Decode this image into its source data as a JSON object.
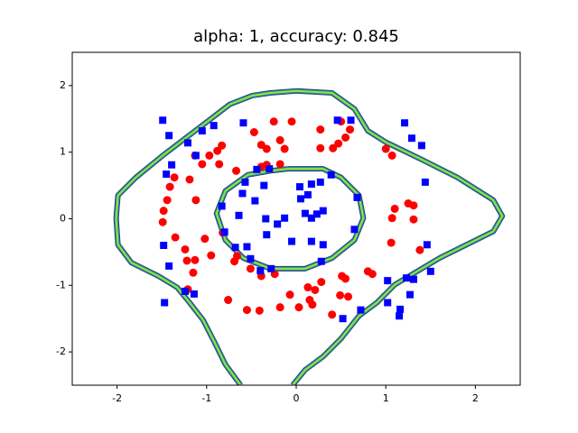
{
  "chart_data": {
    "type": "scatter",
    "title": "alpha: 1, accuracy: 0.845",
    "xlim": [
      -2.5,
      2.5
    ],
    "ylim": [
      -2.5,
      2.5
    ],
    "xticks": [
      -2,
      -1,
      0,
      1,
      2
    ],
    "yticks": [
      -2,
      -1,
      0,
      1,
      2
    ],
    "series": [
      {
        "color": "#ff0000",
        "marker": "circle",
        "x": [
          -0.25,
          -0.05,
          0.27,
          0.5,
          -0.47,
          -0.83,
          -0.39,
          -0.18,
          0.55,
          0.6,
          -0.13,
          -0.33,
          -0.88,
          -0.97,
          0.27,
          0.41,
          0.47,
          1.0,
          1.07,
          -1.13,
          -1.05,
          -0.86,
          -0.33,
          -0.18,
          -0.67,
          -0.39,
          -1.36,
          -1.19,
          -1.41,
          -1.44,
          -1.12,
          -1.48,
          -1.49,
          1.1,
          1.25,
          1.31,
          1.07,
          1.31,
          -0.82,
          -1.35,
          -1.02,
          1.06,
          -1.24,
          -0.95,
          -0.66,
          -1.22,
          -1.13,
          -0.51,
          1.38,
          -0.69,
          -0.24,
          -0.39,
          0.51,
          0.55,
          0.8,
          0.85,
          -1.15,
          0.28,
          0.13,
          0.21,
          -0.07,
          -0.76,
          0.49,
          0.58,
          0.15,
          0.03,
          0.18,
          -0.18,
          -0.55,
          -0.41,
          0.4,
          -1.21
        ],
        "y": [
          1.46,
          1.46,
          1.34,
          1.46,
          1.3,
          1.1,
          1.11,
          1.18,
          1.22,
          1.34,
          1.05,
          1.05,
          1.02,
          0.95,
          1.06,
          1.06,
          1.13,
          1.05,
          0.95,
          0.95,
          0.82,
          0.82,
          0.81,
          0.82,
          0.72,
          0.78,
          0.62,
          0.59,
          0.48,
          0.28,
          0.28,
          0.12,
          -0.05,
          0.15,
          0.23,
          0.2,
          0.01,
          -0.01,
          -0.21,
          -0.28,
          -0.3,
          -0.36,
          -0.46,
          -0.55,
          -0.56,
          -0.63,
          -0.62,
          -0.75,
          -0.47,
          -0.64,
          -0.83,
          -0.86,
          -0.86,
          -0.9,
          -0.79,
          -0.83,
          -0.81,
          -0.95,
          -1.03,
          -1.07,
          -1.14,
          -1.22,
          -1.15,
          -1.17,
          -1.22,
          -1.33,
          -1.29,
          -1.33,
          -1.37,
          -1.38,
          -1.44,
          -1.06
        ]
      },
      {
        "color": "#0000ff",
        "marker": "square",
        "x": [
          -1.49,
          -1.42,
          -1.05,
          -0.92,
          -0.59,
          0.46,
          0.61,
          1.21,
          1.29,
          1.4,
          -1.21,
          -1.12,
          -1.39,
          -1.45,
          1.44,
          -0.44,
          -0.3,
          0.39,
          0.27,
          -0.57,
          -0.36,
          0.04,
          0.17,
          -0.6,
          0.13,
          0.05,
          0.68,
          -0.46,
          -0.83,
          -0.64,
          -0.34,
          -0.13,
          0.1,
          0.23,
          0.3,
          0.17,
          -0.21,
          -0.8,
          0.65,
          -0.33,
          -1.48,
          -0.55,
          -0.68,
          -0.05,
          0.17,
          0.3,
          1.46,
          -0.51,
          0.28,
          -1.42,
          -0.4,
          -0.28,
          1.5,
          1.23,
          1.02,
          1.31,
          -1.24,
          -1.14,
          1.27,
          -1.47,
          1.02,
          0.72,
          1.16,
          1.15,
          0.52
        ],
        "y": [
          1.48,
          1.25,
          1.32,
          1.4,
          1.44,
          1.48,
          1.48,
          1.44,
          1.21,
          1.1,
          1.14,
          0.95,
          0.81,
          0.67,
          0.55,
          0.74,
          0.75,
          0.66,
          0.55,
          0.55,
          0.5,
          0.48,
          0.52,
          0.38,
          0.36,
          0.3,
          0.32,
          0.27,
          0.19,
          0.05,
          0.0,
          0.01,
          0.08,
          0.07,
          0.12,
          0.01,
          -0.08,
          -0.2,
          -0.16,
          -0.24,
          -0.4,
          -0.42,
          -0.43,
          -0.34,
          -0.34,
          -0.39,
          -0.39,
          -0.6,
          -0.64,
          -0.71,
          -0.78,
          -0.75,
          -0.79,
          -0.89,
          -0.93,
          -0.91,
          -1.09,
          -1.13,
          -1.14,
          -1.26,
          -1.26,
          -1.37,
          -1.36,
          -1.46,
          -1.5
        ]
      }
    ],
    "contours": [
      {
        "colors": [
          "#2b3f84",
          "#1f9a8a",
          "#9be03f"
        ],
        "x": [
          -0.62,
          -0.79,
          -0.91,
          -1.04,
          -1.19,
          -1.33,
          -1.54,
          -1.84,
          -1.99,
          -2.01,
          -1.99,
          -1.79,
          -1.49,
          -1.09,
          -0.74,
          -0.49,
          -0.29,
          0.0,
          0.4,
          0.65,
          0.8,
          1.0,
          1.4,
          1.8,
          2.2,
          2.3,
          2.2,
          1.9,
          1.6,
          1.35,
          1.1,
          0.9,
          0.7,
          0.5,
          0.3,
          0.1,
          -0.04
        ],
        "y": [
          -2.5,
          -2.19,
          -1.86,
          -1.52,
          -1.26,
          -1.03,
          -0.86,
          -0.66,
          -0.39,
          0.01,
          0.35,
          0.62,
          0.95,
          1.36,
          1.72,
          1.85,
          1.89,
          1.92,
          1.89,
          1.65,
          1.32,
          1.15,
          0.89,
          0.62,
          0.28,
          0.04,
          -0.19,
          -0.39,
          -0.59,
          -0.79,
          -0.99,
          -1.26,
          -1.46,
          -1.8,
          -2.07,
          -2.27,
          -2.5
        ]
      },
      {
        "colors": [
          "#2b3f84",
          "#1f9a8a",
          "#9be03f"
        ],
        "x": [
          -0.09,
          0.3,
          0.5,
          0.7,
          0.75,
          0.65,
          0.4,
          0.1,
          -0.29,
          -0.59,
          -0.79,
          -0.89,
          -0.79,
          -0.54,
          -0.29,
          -0.09
        ],
        "y": [
          0.75,
          0.75,
          0.62,
          0.35,
          0.01,
          -0.32,
          -0.59,
          -0.75,
          -0.75,
          -0.59,
          -0.32,
          0.08,
          0.42,
          0.66,
          0.72,
          0.75
        ]
      }
    ]
  }
}
